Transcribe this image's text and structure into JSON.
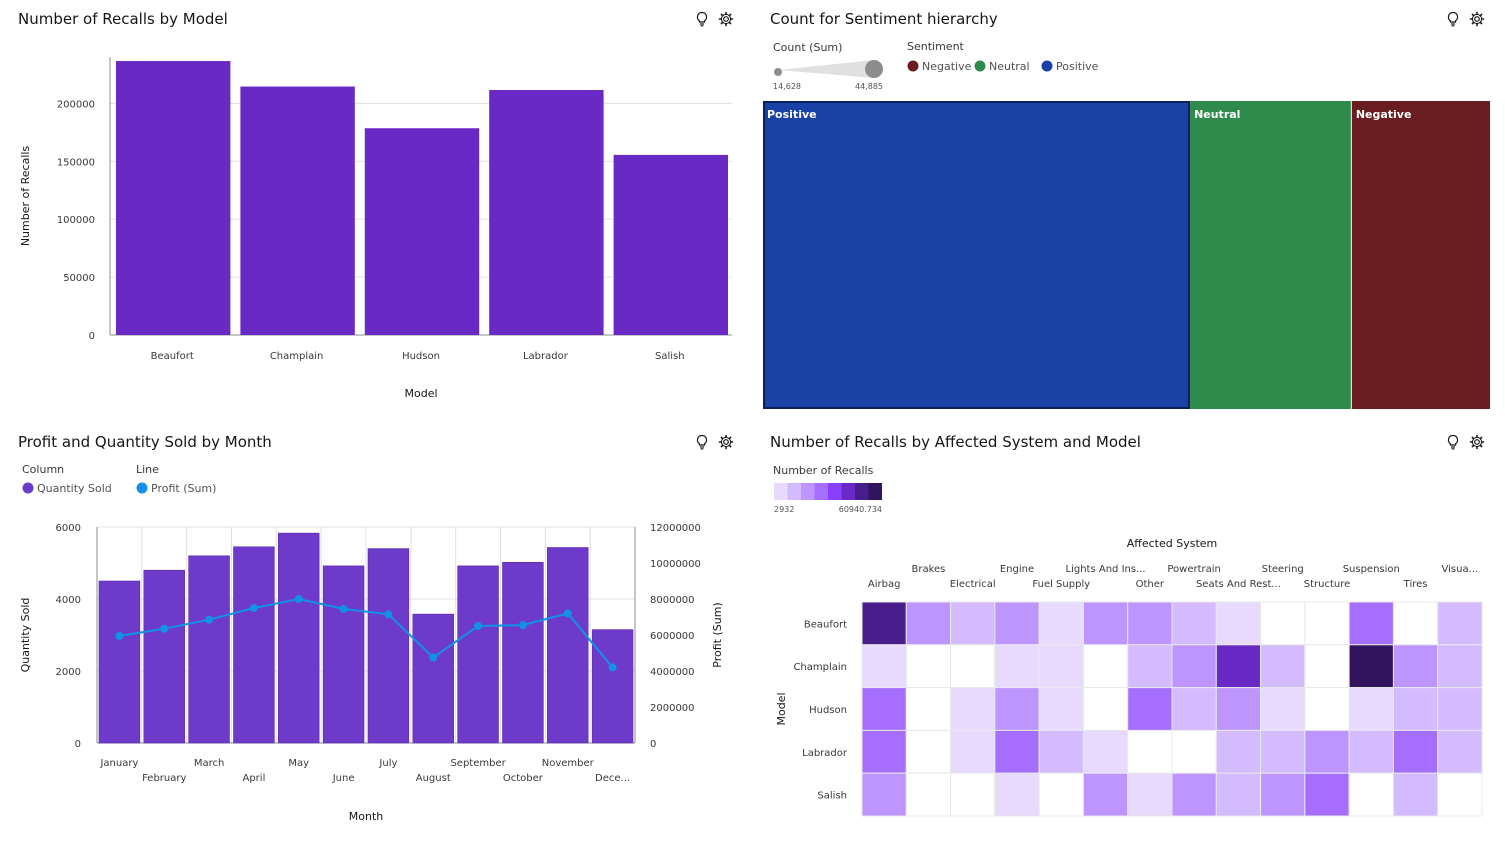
{
  "panels": {
    "recalls_by_model": {
      "title": "Number of Recalls by Model"
    },
    "sentiment": {
      "title": "Count for Sentiment hierarchy"
    },
    "profit_quantity": {
      "title": "Profit and Quantity Sold by Month"
    },
    "recalls_heatmap": {
      "title": "Number of Recalls by Affected System and Model"
    }
  },
  "icons": [
    "lightbulb-icon",
    "settings-icon"
  ],
  "colors": {
    "bar_purple": "#6929c4",
    "column_purple": "#6d3ac9",
    "line_blue": "#1192e8",
    "positive": "#1a41a6",
    "neutral": "#2e8b4b",
    "negative": "#6a1e22"
  },
  "chart_data": [
    {
      "type": "bar",
      "title": "Number of Recalls by Model",
      "xlabel": "Model",
      "ylabel": "Number of Recalls",
      "categories": [
        "Beaufort",
        "Champlain",
        "Hudson",
        "Labrador",
        "Salish"
      ],
      "values": [
        236500,
        214500,
        178500,
        211500,
        155500
      ],
      "ylim": [
        0,
        240000
      ],
      "yticks": [
        0,
        50000,
        100000,
        150000,
        200000
      ],
      "grid": true
    },
    {
      "type": "treemap",
      "title": "Count for Sentiment hierarchy",
      "size_legend": {
        "label": "Count (Sum)",
        "min": "14,628",
        "max": "44,885"
      },
      "color_legend": {
        "label": "Sentiment",
        "items": [
          {
            "name": "Negative",
            "color": "#6a1e22"
          },
          {
            "name": "Neutral",
            "color": "#2e8b4b"
          },
          {
            "name": "Positive",
            "color": "#1a41a6"
          }
        ]
      },
      "nodes": [
        {
          "name": "Positive",
          "value": 44885,
          "color": "#1a41a6"
        },
        {
          "name": "Neutral",
          "value": 17000,
          "color": "#2e8b4b"
        },
        {
          "name": "Negative",
          "value": 14628,
          "color": "#6a1e22"
        }
      ]
    },
    {
      "type": "combo",
      "title": "Profit and Quantity Sold by Month",
      "xlabel": "Month",
      "ylabel": "Quantity Sold",
      "y2label": "Profit (Sum)",
      "legend": {
        "column_heading": "Column",
        "line_heading": "Line",
        "column_series": "Quantity Sold",
        "line_series": "Profit (Sum)"
      },
      "categories": [
        "January",
        "February",
        "March",
        "April",
        "May",
        "June",
        "July",
        "August",
        "September",
        "October",
        "November",
        "Dece..."
      ],
      "series": [
        {
          "name": "Quantity Sold",
          "kind": "column",
          "axis": "left",
          "values": [
            4500,
            4800,
            5200,
            5450,
            5830,
            4920,
            5400,
            3580,
            4920,
            5020,
            5430,
            3150
          ]
        },
        {
          "name": "Profit (Sum)",
          "kind": "line",
          "axis": "right",
          "values": [
            5950000,
            6350000,
            6850000,
            7500000,
            8000000,
            7450000,
            7150000,
            4750000,
            6500000,
            6550000,
            7200000,
            4200000
          ]
        }
      ],
      "ylim": [
        0,
        6000
      ],
      "yticks": [
        0,
        2000,
        4000,
        6000
      ],
      "y2lim": [
        0,
        12000000
      ],
      "y2ticks": [
        0,
        2000000,
        4000000,
        6000000,
        8000000,
        10000000,
        12000000
      ]
    },
    {
      "type": "heatmap",
      "title": "Number of Recalls by Affected System and Model",
      "xlabel": "Affected System",
      "ylabel": "Model",
      "color_legend": {
        "label": "Number of Recalls",
        "min": "2932",
        "max": "60940.734"
      },
      "x": [
        "Airbag",
        "Brakes",
        "Electrical",
        "Engine",
        "Fuel Supply",
        "Lights And Ins...",
        "Other",
        "Powertrain",
        "Seats And Rest...",
        "Steering",
        "Structure",
        "Suspension",
        "Tires",
        "Visua..."
      ],
      "y": [
        "Beaufort",
        "Champlain",
        "Hudson",
        "Labrador",
        "Salish"
      ],
      "levels": [
        [
          7,
          3,
          2,
          3,
          1,
          3,
          3,
          2,
          0.5,
          0,
          0,
          4,
          0,
          2
        ],
        [
          1,
          0,
          0,
          1,
          0.5,
          0,
          2,
          3,
          6,
          1.5,
          0,
          8,
          3,
          2
        ],
        [
          4,
          0,
          0.5,
          3,
          1,
          0,
          4,
          2,
          3,
          0.5,
          0,
          0.5,
          1.5,
          2
        ],
        [
          4,
          0,
          1,
          4,
          2,
          0.5,
          0,
          0,
          2,
          2,
          3,
          2,
          4,
          2
        ],
        [
          3,
          0,
          0,
          0.5,
          0,
          3,
          0.5,
          3,
          2,
          3,
          4,
          0,
          2,
          0
        ]
      ]
    }
  ]
}
